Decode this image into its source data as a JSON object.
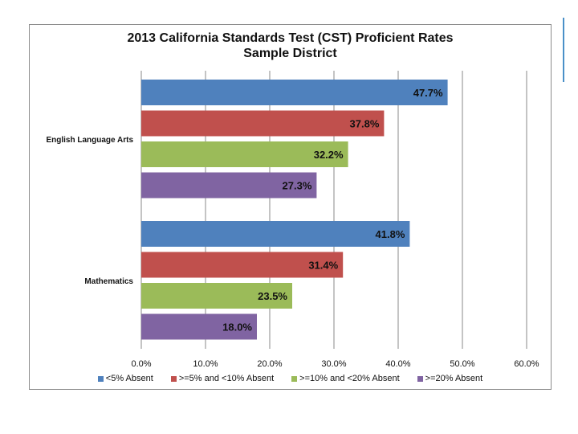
{
  "chart_data": {
    "type": "bar",
    "orientation": "horizontal",
    "title": "2013 California Standards Test (CST) Proficient Rates",
    "subtitle": "Sample District",
    "categories": [
      "English Language Arts",
      "Mathematics"
    ],
    "series": [
      {
        "name": "<5% Absent",
        "color": "#4f81bd",
        "values": [
          47.7,
          41.8
        ],
        "labels": [
          "47.7%",
          "41.8%"
        ]
      },
      {
        "name": ">=5% and <10% Absent",
        "color": "#c0504d",
        "values": [
          37.8,
          31.4
        ],
        "labels": [
          "37.8%",
          "31.4%"
        ]
      },
      {
        "name": ">=10% and <20% Absent",
        "color": "#9bbb59",
        "values": [
          32.2,
          23.5
        ],
        "labels": [
          "32.2%",
          "23.5%"
        ]
      },
      {
        "name": ">=20% Absent",
        "color": "#8064a2",
        "values": [
          27.3,
          18.0
        ],
        "labels": [
          "27.3%",
          "18.0%"
        ]
      }
    ],
    "xlim": [
      0,
      60
    ],
    "xticks": [
      0,
      10,
      20,
      30,
      40,
      50,
      60
    ],
    "xtick_labels": [
      "0.0%",
      "10.0%",
      "20.0%",
      "30.0%",
      "40.0%",
      "50.0%",
      "60.0%"
    ],
    "grid": true,
    "legend_position": "bottom"
  }
}
